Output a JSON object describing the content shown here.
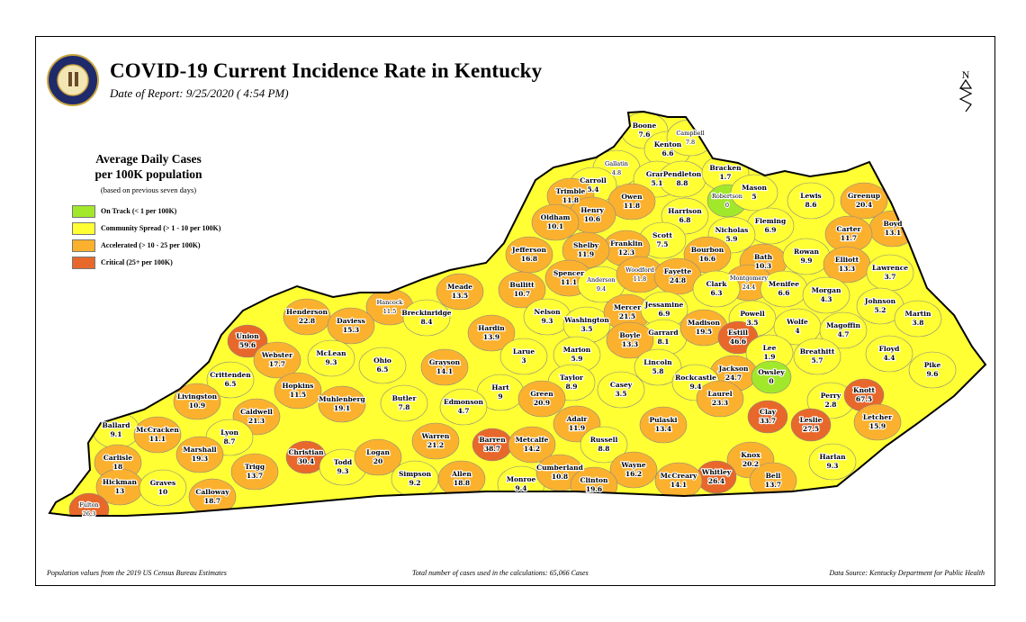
{
  "header": {
    "title": "COVID-19 Current Incidence Rate in Kentucky",
    "date_of_report": "Date of Report: 9/25/2020 ( 4:54 PM)",
    "seal": "Commonwealth of Kentucky seal",
    "north_arrow": "N"
  },
  "legend": {
    "title_line1": "Average Daily Cases",
    "title_line2": "per 100K population",
    "subtitle": "(based on previous seven days)",
    "items": [
      {
        "label": "On Track (< 1 per 100K)",
        "color": "#a2e82a"
      },
      {
        "label": "Community Spread (> 1 - 10 per 100K)",
        "color": "#ffff33"
      },
      {
        "label": "Accelerated (> 10 - 25 per 100K)",
        "color": "#fbb12e"
      },
      {
        "label": "Critical (25+ per 100K)",
        "color": "#e8682b"
      }
    ]
  },
  "footer": {
    "left": "Population values from the 2019 US Census Bureau Estimates",
    "center": "Total number of cases used in the calculations: 65,066 Cases",
    "right": "Data Source: Kentucky Department for Public Health"
  },
  "counties": [
    {
      "name": "Boone",
      "rate": 7.6
    },
    {
      "name": "Kenton",
      "rate": 6.6
    },
    {
      "name": "Campbell",
      "rate": 7.8
    },
    {
      "name": "Gallatin",
      "rate": 4.8
    },
    {
      "name": "Carroll",
      "rate": 5.4
    },
    {
      "name": "Grant",
      "rate": 5.1
    },
    {
      "name": "Pendleton",
      "rate": 8.8
    },
    {
      "name": "Bracken",
      "rate": 1.7
    },
    {
      "name": "Trimble",
      "rate": 11.8
    },
    {
      "name": "Robertson",
      "rate": 0
    },
    {
      "name": "Mason",
      "rate": 5
    },
    {
      "name": "Lewis",
      "rate": 8.6
    },
    {
      "name": "Greenup",
      "rate": 20.4
    },
    {
      "name": "Owen",
      "rate": 11.8
    },
    {
      "name": "Henry",
      "rate": 10.6
    },
    {
      "name": "Oldham",
      "rate": 10.1
    },
    {
      "name": "Harrison",
      "rate": 6.8
    },
    {
      "name": "Boyd",
      "rate": 13.1
    },
    {
      "name": "Carter",
      "rate": 11.7
    },
    {
      "name": "Fleming",
      "rate": 6.9
    },
    {
      "name": "Nicholas",
      "rate": 5.9
    },
    {
      "name": "Scott",
      "rate": 7.5
    },
    {
      "name": "Franklin",
      "rate": 12.3
    },
    {
      "name": "Shelby",
      "rate": 11.9
    },
    {
      "name": "Jefferson",
      "rate": 16.8
    },
    {
      "name": "Bourbon",
      "rate": 16.6
    },
    {
      "name": "Bath",
      "rate": 10.3
    },
    {
      "name": "Rowan",
      "rate": 9.9
    },
    {
      "name": "Elliott",
      "rate": 13.3
    },
    {
      "name": "Lawrence",
      "rate": 3.7
    },
    {
      "name": "Spencer",
      "rate": 11.1
    },
    {
      "name": "Anderson",
      "rate": 9.4
    },
    {
      "name": "Woodford",
      "rate": 11.8
    },
    {
      "name": "Fayette",
      "rate": 24.8
    },
    {
      "name": "Montgomery",
      "rate": 24.4
    },
    {
      "name": "Clark",
      "rate": 6.3
    },
    {
      "name": "Menifee",
      "rate": 6.6
    },
    {
      "name": "Morgan",
      "rate": 4.3
    },
    {
      "name": "Johnson",
      "rate": 5.2
    },
    {
      "name": "Martin",
      "rate": 3.8
    },
    {
      "name": "Meade",
      "rate": 13.5
    },
    {
      "name": "Bullitt",
      "rate": 10.7
    },
    {
      "name": "Hancock",
      "rate": 11.5
    },
    {
      "name": "Breckinridge",
      "rate": 8.4
    },
    {
      "name": "Henderson",
      "rate": 22.8
    },
    {
      "name": "Daviess",
      "rate": 15.3
    },
    {
      "name": "Nelson",
      "rate": 9.3
    },
    {
      "name": "Washington",
      "rate": 3.5
    },
    {
      "name": "Mercer",
      "rate": 21.5
    },
    {
      "name": "Jessamine",
      "rate": 6.9
    },
    {
      "name": "Garrard",
      "rate": 8.1
    },
    {
      "name": "Madison",
      "rate": 19.5
    },
    {
      "name": "Powell",
      "rate": 3.5
    },
    {
      "name": "Wolfe",
      "rate": 4
    },
    {
      "name": "Magoffin",
      "rate": 4.7
    },
    {
      "name": "Union",
      "rate": 59.6
    },
    {
      "name": "Hardin",
      "rate": 13.9
    },
    {
      "name": "Larue",
      "rate": 3
    },
    {
      "name": "Boyle",
      "rate": 13.3
    },
    {
      "name": "Estill",
      "rate": 46.6
    },
    {
      "name": "Lee",
      "rate": 1.9
    },
    {
      "name": "Breathitt",
      "rate": 5.7
    },
    {
      "name": "Floyd",
      "rate": 4.4
    },
    {
      "name": "Pike",
      "rate": 9.6
    },
    {
      "name": "Webster",
      "rate": 17.7
    },
    {
      "name": "McLean",
      "rate": 9.3
    },
    {
      "name": "Ohio",
      "rate": 6.5
    },
    {
      "name": "Grayson",
      "rate": 14.1
    },
    {
      "name": "Marion",
      "rate": 5.9
    },
    {
      "name": "Lincoln",
      "rate": 5.8
    },
    {
      "name": "Jackson",
      "rate": 24.7
    },
    {
      "name": "Owsley",
      "rate": 0
    },
    {
      "name": "Crittenden",
      "rate": 6.5
    },
    {
      "name": "Hopkins",
      "rate": 11.5
    },
    {
      "name": "Taylor",
      "rate": 8.9
    },
    {
      "name": "Rockcastle",
      "rate": 9.4
    },
    {
      "name": "Casey",
      "rate": 3.5
    },
    {
      "name": "Hart",
      "rate": 9
    },
    {
      "name": "Livingston",
      "rate": 10.9
    },
    {
      "name": "Muhlenberg",
      "rate": 19.1
    },
    {
      "name": "Butler",
      "rate": 7.8
    },
    {
      "name": "Edmonson",
      "rate": 4.7
    },
    {
      "name": "Green",
      "rate": 20.9
    },
    {
      "name": "Perry",
      "rate": 2.8
    },
    {
      "name": "Knott",
      "rate": 67.5
    },
    {
      "name": "Caldwell",
      "rate": 21.3
    },
    {
      "name": "Clay",
      "rate": 33.7
    },
    {
      "name": "Leslie",
      "rate": 27.5
    },
    {
      "name": "Laurel",
      "rate": 23.3
    },
    {
      "name": "Letcher",
      "rate": 15.9
    },
    {
      "name": "Adair",
      "rate": 11.9
    },
    {
      "name": "Ballard",
      "rate": 9.1
    },
    {
      "name": "McCracken",
      "rate": 11.1
    },
    {
      "name": "Lyon",
      "rate": 8.7
    },
    {
      "name": "Warren",
      "rate": 21.2
    },
    {
      "name": "Barren",
      "rate": 38.7
    },
    {
      "name": "Metcalfe",
      "rate": 14.2
    },
    {
      "name": "Russell",
      "rate": 8.8
    },
    {
      "name": "Pulaski",
      "rate": 13.4
    },
    {
      "name": "Carlisle",
      "rate": 18
    },
    {
      "name": "Marshall",
      "rate": 19.3
    },
    {
      "name": "Christian",
      "rate": 30.4
    },
    {
      "name": "Todd",
      "rate": 9.3
    },
    {
      "name": "Logan",
      "rate": 20
    },
    {
      "name": "Trigg",
      "rate": 13.7
    },
    {
      "name": "Knox",
      "rate": 20.2
    },
    {
      "name": "Harlan",
      "rate": 9.3
    },
    {
      "name": "Wayne",
      "rate": 16.2
    },
    {
      "name": "Whitley",
      "rate": 26.4
    },
    {
      "name": "Bell",
      "rate": 13.7
    },
    {
      "name": "Hickman",
      "rate": 13
    },
    {
      "name": "Graves",
      "rate": 10
    },
    {
      "name": "Calloway",
      "rate": 18.7
    },
    {
      "name": "Simpson",
      "rate": 9.2
    },
    {
      "name": "Allen",
      "rate": 18.8
    },
    {
      "name": "Monroe",
      "rate": 9.4
    },
    {
      "name": "Cumberland",
      "rate": 10.8
    },
    {
      "name": "Clinton",
      "rate": 19.6
    },
    {
      "name": "McCreary",
      "rate": 14.1
    },
    {
      "name": "Fulton",
      "rate": 26.3
    }
  ]
}
